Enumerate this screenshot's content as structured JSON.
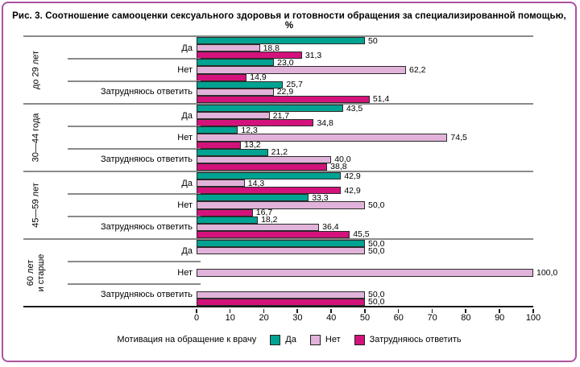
{
  "title": "Рис. 3. Соотношение самооценки сексуального здоровья и готовности обращения за специализированной помощью, %",
  "legend": {
    "prefix": "Мотивация на обращение к врачу"
  },
  "colors": {
    "frame_border": "#AC53A0",
    "group_separator": "#8A8A8A",
    "axis": "#1a1a1a",
    "series_yes": "#00A291",
    "series_no": "#E1B3DA",
    "series_undecided": "#D3137B"
  },
  "chart_data": {
    "type": "bar",
    "orientation": "horizontal",
    "title": "Рис. 3. Соотношение самооценки сексуального здоровья и готовности обращения за специализированной помощью, %",
    "x_axis": {
      "min": 0,
      "max": 100,
      "ticks": [
        0,
        10,
        20,
        30,
        40,
        50,
        60,
        70,
        80,
        90,
        100
      ],
      "grid": false
    },
    "series": [
      "Да",
      "Нет",
      "Затрудняюсь ответить"
    ],
    "series_colors": [
      "#00A291",
      "#E1B3DA",
      "#D3137B"
    ],
    "legend_position": "bottom",
    "groups": [
      {
        "label": "до 29 лет",
        "label_lines": [
          "до 29 лет"
        ],
        "rows": [
          {
            "label": "Да",
            "values": [
              50,
              18.8,
              31.3
            ],
            "value_labels": [
              "50",
              "18,8",
              "31,3"
            ]
          },
          {
            "label": "Нет",
            "values": [
              23.0,
              62.2,
              14.9
            ],
            "value_labels": [
              "23,0",
              "62,2",
              "14,9"
            ]
          },
          {
            "label": "Затрудняюсь ответить",
            "values": [
              25.7,
              22.9,
              51.4
            ],
            "value_labels": [
              "25,7",
              "22,9",
              "51,4"
            ]
          }
        ]
      },
      {
        "label": "30—44 года",
        "label_lines": [
          "30—44 года"
        ],
        "rows": [
          {
            "label": "Да",
            "values": [
              43.5,
              21.7,
              34.8
            ],
            "value_labels": [
              "43,5",
              "21,7",
              "34,8"
            ]
          },
          {
            "label": "Нет",
            "values": [
              12.3,
              74.5,
              13.2
            ],
            "value_labels": [
              "12,3",
              "74,5",
              "13,2"
            ]
          },
          {
            "label": "Затрудняюсь ответить",
            "values": [
              21.2,
              40.0,
              38.8
            ],
            "value_labels": [
              "21,2",
              "40,0",
              "38,8"
            ]
          }
        ]
      },
      {
        "label": "45—59 лет",
        "label_lines": [
          "45—59 лет"
        ],
        "rows": [
          {
            "label": "Да",
            "values": [
              42.9,
              14.3,
              42.9
            ],
            "value_labels": [
              "42,9",
              "14,3",
              "42,9"
            ]
          },
          {
            "label": "Нет",
            "values": [
              33.3,
              50.0,
              16.7
            ],
            "value_labels": [
              "33,3",
              "50,0",
              "16,7"
            ]
          },
          {
            "label": "Затрудняюсь ответить",
            "values": [
              18.2,
              36.4,
              45.5
            ],
            "value_labels": [
              "18,2",
              "36,4",
              "45,5"
            ]
          }
        ]
      },
      {
        "label": "60 лет и старше",
        "label_lines": [
          "60 лет",
          "и старше"
        ],
        "rows": [
          {
            "label": "Да",
            "values": [
              50.0,
              50.0,
              null
            ],
            "value_labels": [
              "50,0",
              "50,0",
              null
            ]
          },
          {
            "label": "Нет",
            "values": [
              null,
              100.0,
              null
            ],
            "value_labels": [
              null,
              "100,0",
              null
            ]
          },
          {
            "label": "Затрудняюсь ответить",
            "values": [
              null,
              50.0,
              50.0
            ],
            "value_labels": [
              null,
              "50,0",
              "50,0"
            ]
          }
        ]
      }
    ]
  }
}
